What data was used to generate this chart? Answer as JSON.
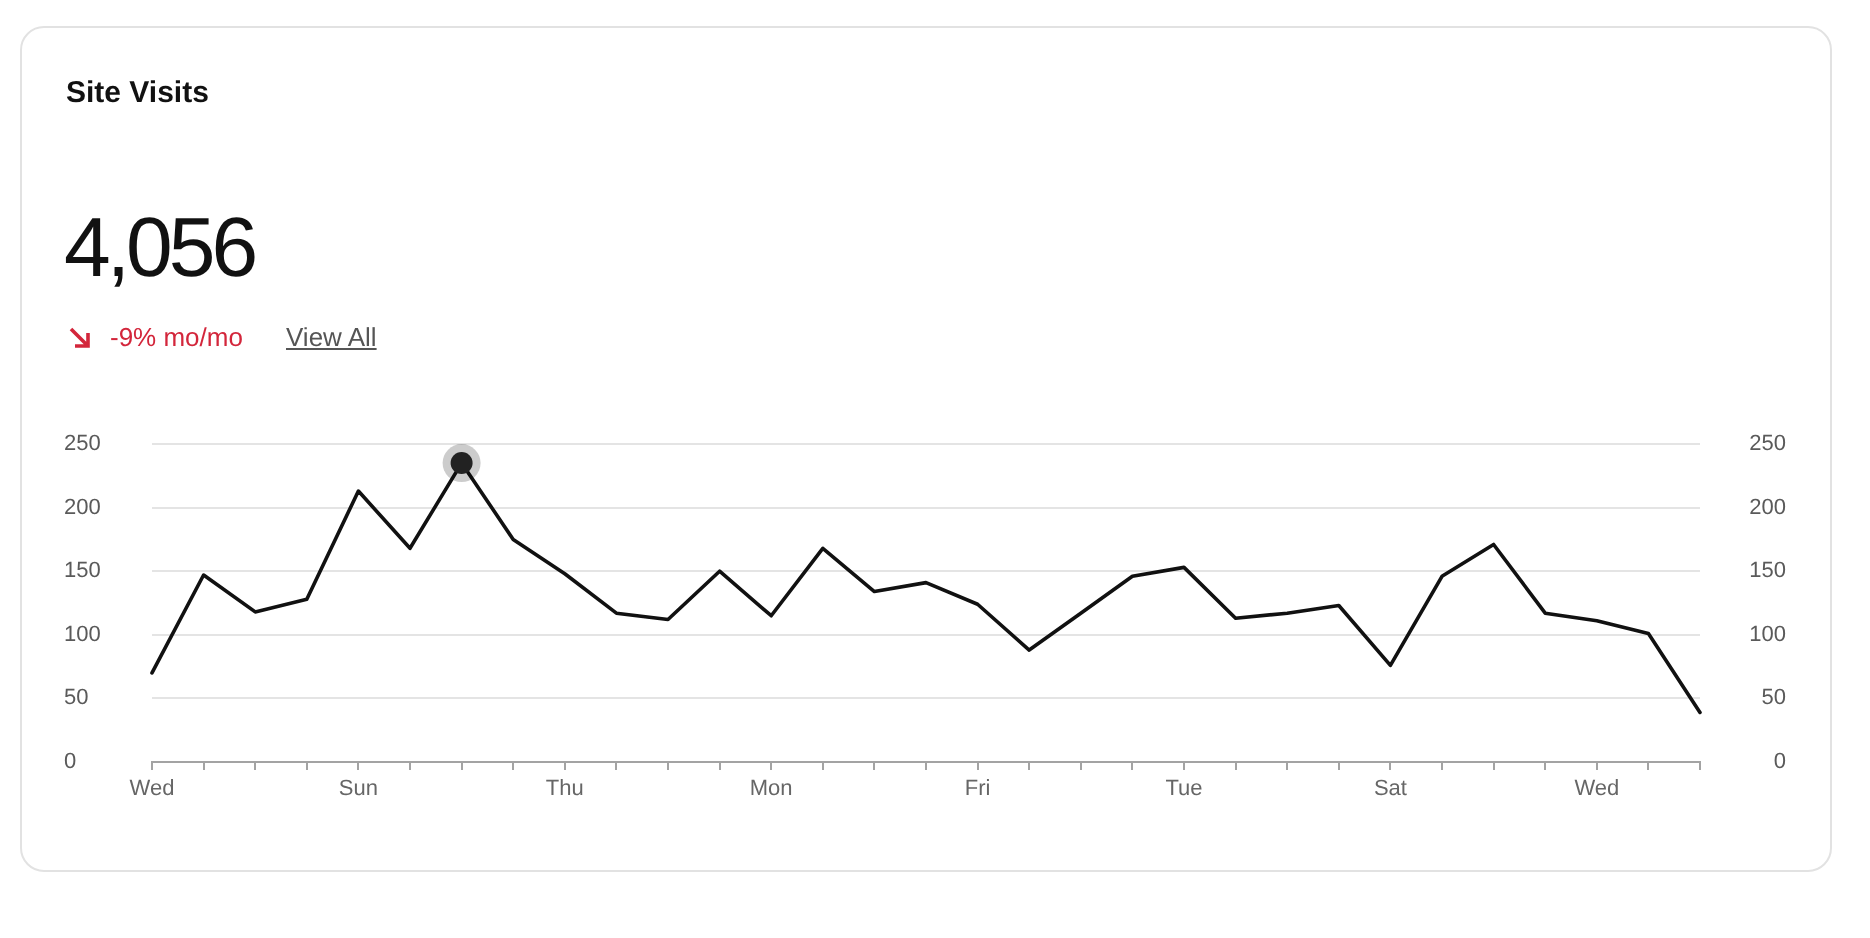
{
  "chart_data": {
    "type": "line",
    "title": "Site Visits",
    "annotations": [
      "4,056",
      "-9% mo/mo",
      "View All"
    ],
    "categories": [
      "Wed",
      null,
      null,
      null,
      "Sun",
      null,
      null,
      null,
      "Thu",
      null,
      null,
      null,
      "Mon",
      null,
      null,
      null,
      "Fri",
      null,
      null,
      null,
      "Tue",
      null,
      null,
      null,
      "Sat",
      null,
      null,
      null,
      "Wed",
      null,
      null
    ],
    "ylim": [
      0,
      250
    ],
    "yticks": [
      0,
      50,
      100,
      150,
      200,
      250
    ],
    "y2lim": [
      0,
      250
    ],
    "y2ticks": [
      0,
      50,
      100,
      150,
      200,
      250
    ],
    "grid": "y",
    "series": [
      {
        "color": "#111111",
        "marker": "none",
        "values": [
          70,
          147,
          118,
          128,
          213,
          168,
          235,
          175,
          148,
          117,
          112,
          150,
          115,
          168,
          134,
          141,
          124,
          88,
          117,
          146,
          153,
          113,
          117,
          123,
          76,
          146,
          171,
          117,
          111,
          101,
          39
        ]
      },
      {
        "type": "scatter",
        "color": "#222222",
        "marker": "circle",
        "values": [
          null,
          null,
          null,
          null,
          null,
          null,
          235,
          null,
          null,
          null,
          null,
          null,
          null,
          null,
          null,
          null,
          null,
          null,
          null,
          null,
          null,
          null,
          null,
          null,
          null,
          null,
          null,
          null,
          null,
          null,
          null
        ]
      }
    ]
  }
}
